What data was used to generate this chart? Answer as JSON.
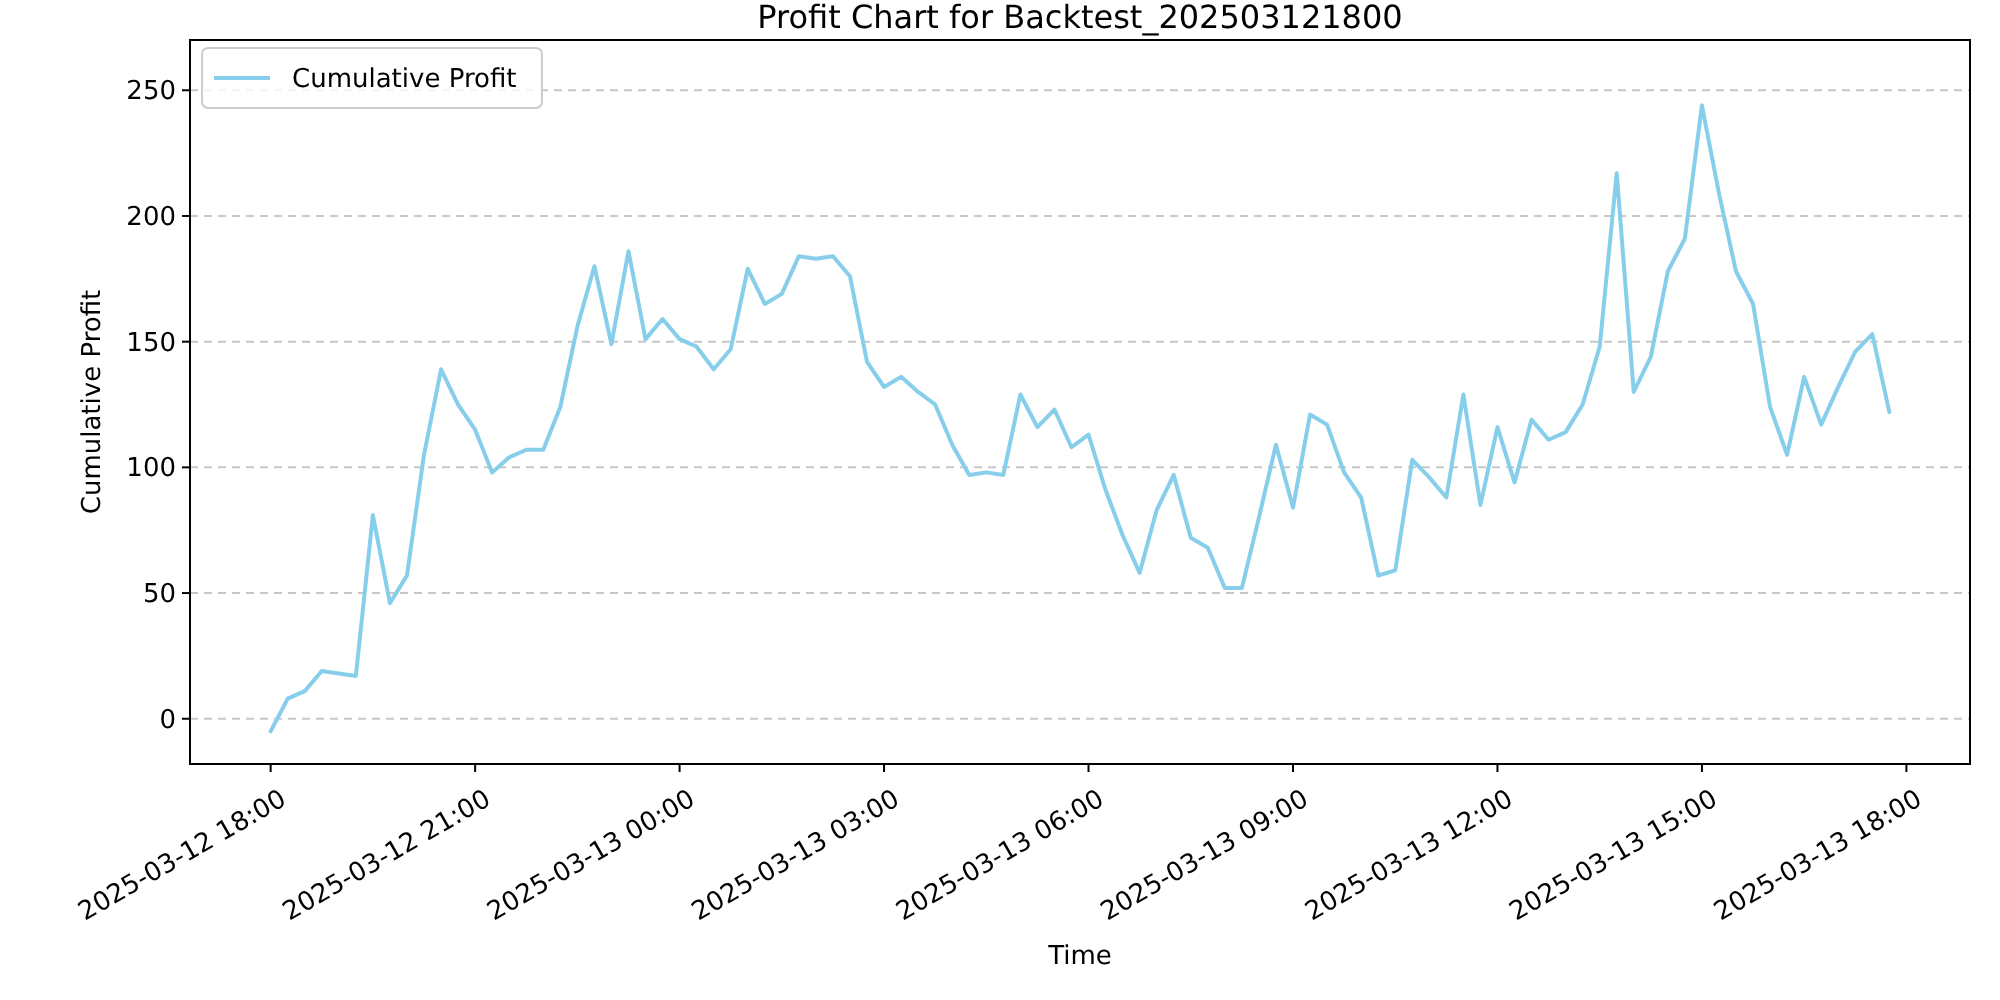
{
  "chart_data": {
    "type": "line",
    "title": "Profit Chart for Backtest_202503121800",
    "xlabel": "Time",
    "ylabel": "Cumulative Profit",
    "x": [
      "2025-03-12T18:00",
      "2025-03-12T18:15",
      "2025-03-12T18:30",
      "2025-03-12T18:45",
      "2025-03-12T19:00",
      "2025-03-12T19:15",
      "2025-03-12T19:30",
      "2025-03-12T19:45",
      "2025-03-12T20:00",
      "2025-03-12T20:15",
      "2025-03-12T20:30",
      "2025-03-12T20:45",
      "2025-03-12T21:00",
      "2025-03-12T21:15",
      "2025-03-12T21:30",
      "2025-03-12T21:45",
      "2025-03-12T22:00",
      "2025-03-12T22:15",
      "2025-03-12T22:30",
      "2025-03-12T22:45",
      "2025-03-12T23:00",
      "2025-03-12T23:15",
      "2025-03-12T23:30",
      "2025-03-12T23:45",
      "2025-03-13T00:00",
      "2025-03-13T00:15",
      "2025-03-13T00:30",
      "2025-03-13T00:45",
      "2025-03-13T01:00",
      "2025-03-13T01:15",
      "2025-03-13T01:30",
      "2025-03-13T01:45",
      "2025-03-13T02:00",
      "2025-03-13T02:15",
      "2025-03-13T02:30",
      "2025-03-13T02:45",
      "2025-03-13T03:00",
      "2025-03-13T03:15",
      "2025-03-13T03:30",
      "2025-03-13T03:45",
      "2025-03-13T04:00",
      "2025-03-13T04:15",
      "2025-03-13T04:30",
      "2025-03-13T04:45",
      "2025-03-13T05:00",
      "2025-03-13T05:15",
      "2025-03-13T05:30",
      "2025-03-13T05:45",
      "2025-03-13T06:00",
      "2025-03-13T06:15",
      "2025-03-13T06:30",
      "2025-03-13T06:45",
      "2025-03-13T07:00",
      "2025-03-13T07:15",
      "2025-03-13T07:30",
      "2025-03-13T07:45",
      "2025-03-13T08:00",
      "2025-03-13T08:15",
      "2025-03-13T08:30",
      "2025-03-13T08:45",
      "2025-03-13T09:00",
      "2025-03-13T09:15",
      "2025-03-13T09:30",
      "2025-03-13T09:45",
      "2025-03-13T10:00",
      "2025-03-13T10:15",
      "2025-03-13T10:30",
      "2025-03-13T10:45",
      "2025-03-13T11:00",
      "2025-03-13T11:15",
      "2025-03-13T11:30",
      "2025-03-13T11:45",
      "2025-03-13T12:00",
      "2025-03-13T12:15",
      "2025-03-13T12:30",
      "2025-03-13T12:45",
      "2025-03-13T13:00",
      "2025-03-13T13:15",
      "2025-03-13T13:30",
      "2025-03-13T13:45",
      "2025-03-13T14:00",
      "2025-03-13T14:15",
      "2025-03-13T14:30",
      "2025-03-13T14:45",
      "2025-03-13T15:00",
      "2025-03-13T15:15",
      "2025-03-13T15:30",
      "2025-03-13T15:45",
      "2025-03-13T16:00",
      "2025-03-13T16:15",
      "2025-03-13T16:30",
      "2025-03-13T16:45",
      "2025-03-13T17:00",
      "2025-03-13T17:15",
      "2025-03-13T17:30",
      "2025-03-13T17:45"
    ],
    "series": [
      {
        "name": "Cumulative Profit",
        "color": "#87ceeb",
        "values": [
          -5,
          8,
          11,
          19,
          18,
          17,
          81,
          46,
          57,
          105,
          139,
          125,
          115,
          98,
          104,
          107,
          107,
          124,
          156,
          180,
          149,
          186,
          151,
          159,
          151,
          148,
          139,
          147,
          179,
          165,
          169,
          184,
          183,
          184,
          176,
          142,
          132,
          136,
          130,
          125,
          109,
          97,
          98,
          97,
          129,
          116,
          123,
          108,
          113,
          91,
          73,
          58,
          83,
          97,
          72,
          68,
          52,
          52,
          80,
          109,
          84,
          121,
          117,
          98,
          88,
          57,
          59,
          103,
          96,
          88,
          129,
          85,
          116,
          94,
          119,
          111,
          114,
          125,
          148,
          217,
          130,
          144,
          178,
          191,
          244,
          209,
          178,
          165,
          124,
          105,
          136,
          117,
          132,
          146,
          153,
          122
        ]
      }
    ],
    "xlim": [
      "2025-03-12T16:49",
      "2025-03-13T18:56"
    ],
    "xticks": [
      {
        "value": "2025-03-12T18:00",
        "label": "2025-03-12 18:00"
      },
      {
        "value": "2025-03-12T21:00",
        "label": "2025-03-12 21:00"
      },
      {
        "value": "2025-03-13T00:00",
        "label": "2025-03-13 00:00"
      },
      {
        "value": "2025-03-13T03:00",
        "label": "2025-03-13 03:00"
      },
      {
        "value": "2025-03-13T06:00",
        "label": "2025-03-13 06:00"
      },
      {
        "value": "2025-03-13T09:00",
        "label": "2025-03-13 09:00"
      },
      {
        "value": "2025-03-13T12:00",
        "label": "2025-03-13 12:00"
      },
      {
        "value": "2025-03-13T15:00",
        "label": "2025-03-13 15:00"
      },
      {
        "value": "2025-03-13T18:00",
        "label": "2025-03-13 18:00"
      }
    ],
    "ylim": [
      -18,
      270
    ],
    "yticks": [
      0,
      50,
      100,
      150,
      200,
      250
    ],
    "grid": "y",
    "legend": "top left",
    "line_style": "solid",
    "marker": "none"
  }
}
